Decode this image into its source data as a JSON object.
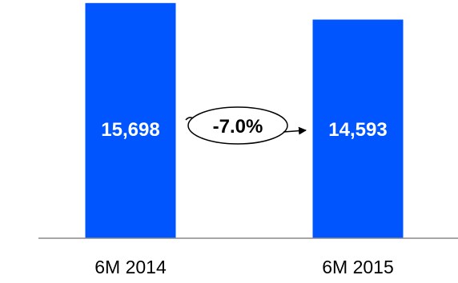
{
  "chart_data": {
    "type": "bar",
    "categories": [
      "6M 2014",
      "6M 2015"
    ],
    "values": [
      15698,
      14593
    ],
    "value_labels": [
      "15,698",
      "14,593"
    ],
    "change_label": "-7.0%",
    "ylim": [
      0,
      15900
    ],
    "bar_color": "#0055FF",
    "axis_color": "#888888",
    "grid": false
  }
}
